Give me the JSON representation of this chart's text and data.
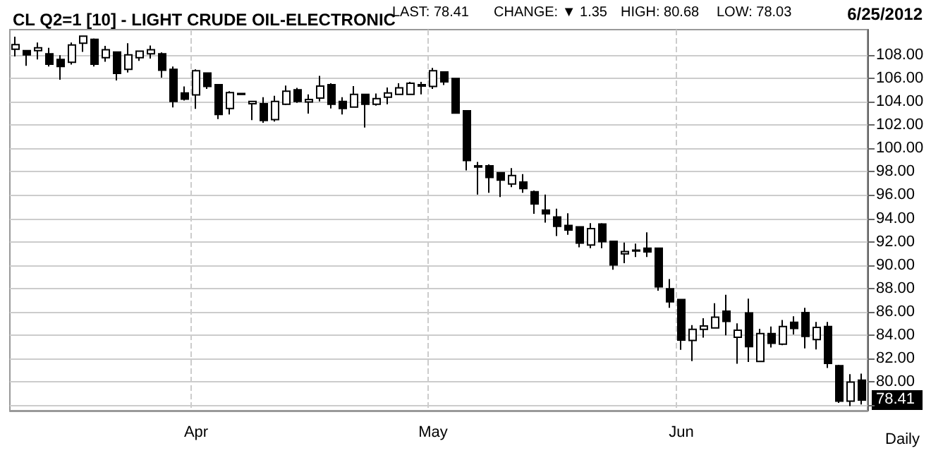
{
  "chart_data": {
    "type": "candlestick",
    "title": "CL Q2=1 [10] - LIGHT CRUDE OIL-ELECTRONIC",
    "color": "#000000",
    "annotations": [
      "LAST: 78.41",
      "CHANGE: ▼ 1.35",
      "HIGH: 80.68",
      "LOW: 78.03",
      "6/25/2012",
      "Daily",
      {
        "text": "78.41",
        "y": 78.41
      }
    ],
    "categories": [
      null,
      null,
      null,
      null,
      null,
      null,
      null,
      null,
      null,
      null,
      null,
      null,
      null,
      null,
      null,
      null,
      "Apr",
      null,
      null,
      null,
      null,
      null,
      null,
      null,
      null,
      null,
      null,
      null,
      null,
      null,
      null,
      null,
      null,
      null,
      null,
      null,
      null,
      "May",
      null,
      null,
      null,
      null,
      null,
      null,
      null,
      null,
      null,
      null,
      null,
      null,
      null,
      null,
      null,
      null,
      null,
      null,
      null,
      null,
      null,
      "Jun",
      null,
      null,
      null,
      null,
      null,
      null,
      null,
      null,
      null,
      null,
      null,
      null,
      null,
      null,
      null,
      null
    ],
    "ohlc": [
      [
        108.52,
        109.6,
        107.9,
        108.92
      ],
      [
        108.4,
        108.4,
        107.1,
        108.04
      ],
      [
        108.4,
        109.1,
        107.64,
        108.64
      ],
      [
        108.12,
        108.64,
        107.04,
        107.24
      ],
      [
        107.64,
        108.0,
        105.9,
        107.04
      ],
      [
        107.4,
        109.1,
        107.2,
        108.88
      ],
      [
        109.04,
        109.64,
        108.3,
        109.64
      ],
      [
        109.36,
        109.44,
        107.04,
        107.24
      ],
      [
        107.8,
        108.8,
        107.44,
        108.48
      ],
      [
        108.28,
        108.28,
        105.84,
        106.44
      ],
      [
        106.8,
        109.04,
        106.52,
        108.04
      ],
      [
        107.8,
        108.36,
        107.52,
        108.36
      ],
      [
        108.12,
        108.84,
        107.72,
        108.48
      ],
      [
        108.12,
        108.24,
        106.08,
        106.72
      ],
      [
        106.8,
        107.04,
        103.52,
        104.04
      ],
      [
        104.76,
        105.32,
        104.12,
        104.24
      ],
      [
        104.6,
        106.8,
        103.4,
        106.68
      ],
      [
        106.48,
        106.48,
        105.12,
        105.32
      ],
      [
        105.48,
        105.48,
        102.52,
        102.92
      ],
      [
        103.44,
        104.92,
        102.92,
        104.8
      ],
      [
        104.72,
        104.72,
        104.64,
        104.64
      ],
      [
        103.84,
        104.04,
        102.44,
        104.04
      ],
      [
        103.84,
        104.4,
        102.2,
        102.4
      ],
      [
        102.48,
        104.52,
        102.32,
        104.04
      ],
      [
        103.8,
        105.4,
        103.72,
        104.92
      ],
      [
        105.04,
        105.2,
        103.92,
        104.04
      ],
      [
        104.0,
        104.64,
        103.0,
        104.2
      ],
      [
        104.32,
        106.24,
        104.04,
        105.36
      ],
      [
        105.48,
        105.6,
        103.44,
        103.8
      ],
      [
        104.04,
        104.4,
        102.92,
        103.44
      ],
      [
        103.56,
        105.36,
        103.56,
        104.64
      ],
      [
        104.64,
        104.64,
        101.8,
        103.8
      ],
      [
        103.8,
        104.72,
        103.68,
        104.28
      ],
      [
        104.4,
        105.24,
        103.8,
        104.76
      ],
      [
        104.64,
        105.6,
        104.64,
        105.2
      ],
      [
        104.64,
        105.72,
        104.64,
        105.6
      ],
      [
        105.48,
        105.72,
        104.64,
        105.36
      ],
      [
        105.32,
        106.92,
        105.12,
        106.68
      ],
      [
        106.56,
        106.56,
        105.44,
        105.72
      ],
      [
        106.0,
        106.0,
        103.04,
        103.04
      ],
      [
        103.24,
        103.24,
        98.12,
        98.96
      ],
      [
        98.52,
        98.84,
        96.04,
        98.4
      ],
      [
        98.52,
        98.64,
        96.2,
        97.52
      ],
      [
        97.92,
        97.92,
        95.84,
        97.28
      ],
      [
        96.96,
        98.32,
        96.68,
        97.68
      ],
      [
        97.12,
        97.8,
        96.2,
        96.56
      ],
      [
        96.28,
        96.4,
        94.4,
        95.24
      ],
      [
        94.72,
        96.04,
        93.64,
        94.4
      ],
      [
        94.12,
        94.84,
        92.48,
        93.32
      ],
      [
        93.4,
        94.44,
        92.6,
        93.0
      ],
      [
        93.28,
        93.28,
        91.52,
        91.88
      ],
      [
        91.72,
        93.6,
        91.44,
        93.12
      ],
      [
        93.52,
        93.6,
        91.44,
        92.0
      ],
      [
        92.04,
        92.04,
        89.6,
        90.0
      ],
      [
        90.96,
        91.92,
        90.16,
        91.16
      ],
      [
        91.2,
        91.84,
        90.68,
        91.28
      ],
      [
        91.44,
        92.8,
        90.68,
        91.12
      ],
      [
        91.44,
        91.44,
        87.8,
        88.12
      ],
      [
        87.96,
        88.8,
        86.32,
        86.84
      ],
      [
        87.04,
        87.04,
        82.72,
        83.56
      ],
      [
        83.52,
        84.84,
        81.76,
        84.48
      ],
      [
        84.48,
        85.44,
        83.76,
        84.76
      ],
      [
        84.6,
        86.72,
        84.6,
        85.52
      ],
      [
        86.04,
        87.44,
        83.96,
        85.16
      ],
      [
        83.8,
        85.0,
        81.52,
        84.4
      ],
      [
        85.88,
        87.12,
        81.68,
        83.0
      ],
      [
        81.72,
        84.52,
        81.72,
        84.12
      ],
      [
        84.12,
        84.72,
        82.92,
        83.28
      ],
      [
        83.2,
        85.28,
        83.12,
        84.72
      ],
      [
        85.08,
        85.6,
        84.04,
        84.56
      ],
      [
        85.92,
        86.32,
        82.84,
        83.88
      ],
      [
        83.6,
        85.12,
        82.76,
        84.64
      ],
      [
        84.72,
        85.12,
        81.16,
        81.56
      ],
      [
        81.36,
        81.44,
        78.16,
        78.32
      ],
      [
        78.32,
        80.64,
        77.9,
        79.96
      ],
      [
        80.12,
        80.68,
        78.03,
        78.41
      ]
    ],
    "ylim": [
      77.5,
      110.2
    ],
    "yticks": [
      {
        "value": 78,
        "label": null
      },
      {
        "value": 80,
        "label": "80.00"
      },
      {
        "value": 82,
        "label": "82.00"
      },
      {
        "value": 84,
        "label": "84.00"
      },
      {
        "value": 86,
        "label": "86.00"
      },
      {
        "value": 88,
        "label": "88.00"
      },
      {
        "value": 90,
        "label": "90.00"
      },
      {
        "value": 92,
        "label": "92.00"
      },
      {
        "value": 94,
        "label": "94.00"
      },
      {
        "value": 96,
        "label": "96.00"
      },
      {
        "value": 98,
        "label": "98.00"
      },
      {
        "value": 100,
        "label": "100.00"
      },
      {
        "value": 102,
        "label": "102.00"
      },
      {
        "value": 104,
        "label": "104.00"
      },
      {
        "value": 106,
        "label": "106.00"
      },
      {
        "value": 108,
        "label": "108.00"
      }
    ],
    "grid": true
  }
}
